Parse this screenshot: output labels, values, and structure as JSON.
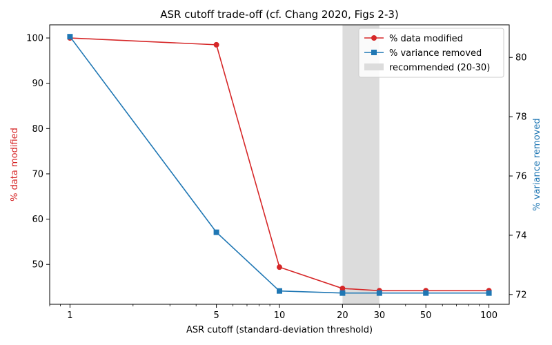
{
  "chart_data": {
    "type": "line",
    "title": "ASR cutoff trade-off (cf. Chang 2020, Figs 2-3)",
    "xlabel": "ASR cutoff (standard-deviation threshold)",
    "ylabel_left": "% data modified",
    "ylabel_right": "% variance removed",
    "xscale": "log",
    "x": [
      1,
      5,
      10,
      20,
      30,
      50,
      100
    ],
    "xticks": [
      1,
      5,
      10,
      20,
      30,
      50,
      100
    ],
    "xlim": [
      0.8,
      125
    ],
    "ylim_left": [
      41.2,
      102.9
    ],
    "ylim_right": [
      71.67,
      81.1
    ],
    "yticks_left": [
      50,
      60,
      70,
      80,
      90,
      100
    ],
    "yticks_right": [
      72,
      74,
      76,
      78,
      80
    ],
    "series": [
      {
        "name": "% data modified",
        "axis": "left",
        "marker": "circle",
        "color": "#d62728",
        "values": [
          100.0,
          98.5,
          49.4,
          44.7,
          44.2,
          44.2,
          44.2
        ]
      },
      {
        "name": "% variance removed",
        "axis": "right",
        "marker": "square",
        "color": "#1f77b4",
        "values": [
          80.7,
          74.1,
          72.12,
          72.05,
          72.05,
          72.05,
          72.05
        ]
      }
    ],
    "shaded_region": {
      "x": [
        20,
        30
      ],
      "label": "recommended (20-30)",
      "color": "#dcdcdc"
    },
    "legend_position": "top-right",
    "grid": false
  }
}
